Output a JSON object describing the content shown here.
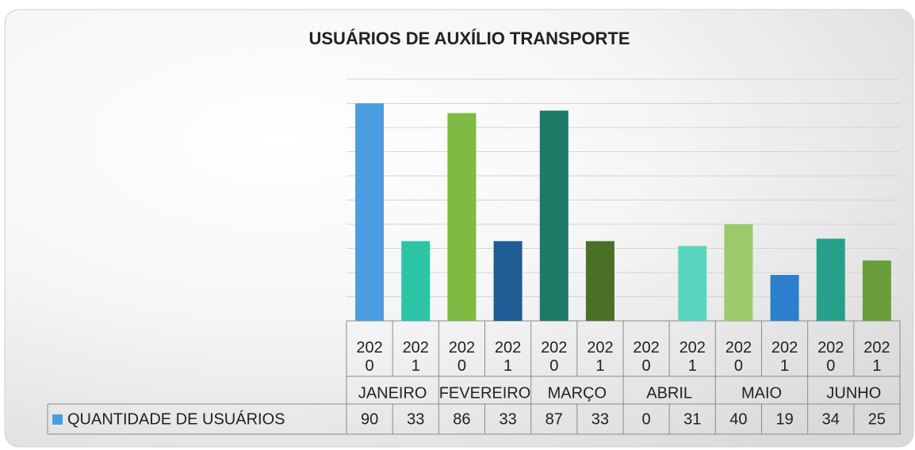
{
  "chart_data": {
    "type": "bar",
    "title": "USUÁRIOS DE AUXÍLIO TRANSPORTE",
    "categories": [
      "2020",
      "2021",
      "2020",
      "2021",
      "2020",
      "2021",
      "2020",
      "2021",
      "2020",
      "2021",
      "2020",
      "2021"
    ],
    "groups": [
      "JANEIRO",
      "FEVEREIRO",
      "MARÇO",
      "ABRIL",
      "MAIO",
      "JUNHO"
    ],
    "series": [
      {
        "name": "QUANTIDADE DE USUÁRIOS",
        "color": "#4a9de0",
        "colors": [
          "#4a9de0",
          "#2ec4a6",
          "#7fba42",
          "#1e5c94",
          "#1d7a67",
          "#4a7028",
          "#3b9fd6",
          "#5ad6c0",
          "#9ccb6a",
          "#2b7fcd",
          "#26a08a",
          "#6a9e3a"
        ],
        "values": [
          90,
          33,
          86,
          33,
          87,
          33,
          0,
          31,
          40,
          19,
          34,
          25
        ]
      }
    ],
    "ylim": [
      0,
      100
    ],
    "yticks": [
      0,
      10,
      20,
      30,
      40,
      50,
      60,
      70,
      80,
      90,
      100
    ],
    "grid": true
  }
}
